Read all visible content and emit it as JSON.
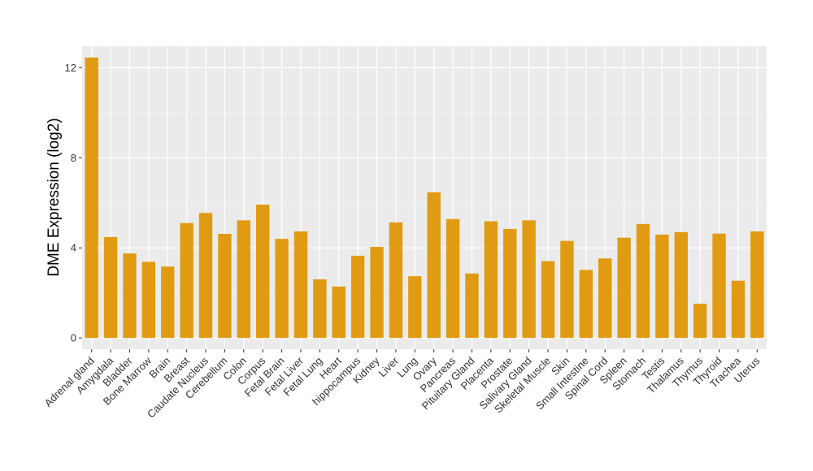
{
  "chart_data": {
    "type": "bar",
    "ylabel": "DME Expression (log2)",
    "xlabel": "",
    "ylim": [
      -0.5,
      12.95
    ],
    "yticks": [
      0,
      4,
      8,
      12
    ],
    "grid": true,
    "bar_color": "#E09B12",
    "panel_color": "#EBEBEB",
    "categories": [
      "Adrenal gland",
      "Amygdala",
      "Bladder",
      "Bone Marrow",
      "Brain",
      "Breast",
      "Caudate Nucleus",
      "Cerebellum",
      "Colon",
      "Corpus",
      "Fetal Brain",
      "Fetal Liver",
      "Fetal Lung",
      "Heart",
      "hippocampus",
      "Kidney",
      "Liver",
      "Lung",
      "Ovary",
      "Pancreas",
      "Pituitary Gland",
      "Placenta",
      "Prostate",
      "Salivary Gland",
      "Skeletal Muscle",
      "Skin",
      "Small Intestine",
      "Spinal Cord",
      "Spleen",
      "Stomach",
      "Testis",
      "Thalamus",
      "Thymus",
      "Thyroid",
      "Trachea",
      "Uterus"
    ],
    "values": [
      12.45,
      4.48,
      3.75,
      3.38,
      3.17,
      5.1,
      5.55,
      4.62,
      5.22,
      5.92,
      4.4,
      4.73,
      2.6,
      2.28,
      3.65,
      4.04,
      5.13,
      2.74,
      6.47,
      5.28,
      2.86,
      5.18,
      4.84,
      5.22,
      3.41,
      4.31,
      3.02,
      3.53,
      4.45,
      5.06,
      4.59,
      4.7,
      1.52,
      4.63,
      2.54,
      4.73
    ]
  }
}
